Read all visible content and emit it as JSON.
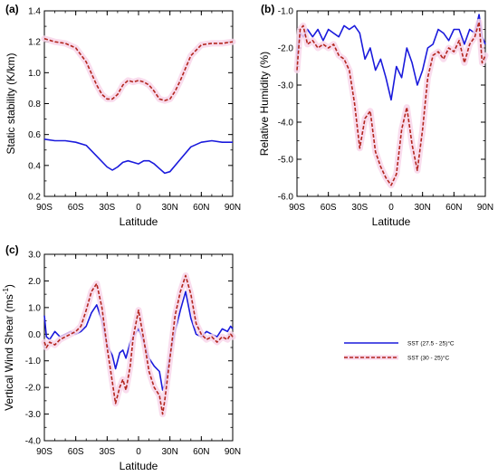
{
  "colors": {
    "blue": "#1a1adc",
    "dashed": "#b3261e",
    "shadow": "#f8d6ea",
    "axis": "#000000"
  },
  "legend": {
    "entries": [
      {
        "label": "SST (27.5 - 25)°C",
        "color": "#1a1adc",
        "style": "solid"
      },
      {
        "label": "SST (30 - 25)°C",
        "color": "#b3261e",
        "style": "dashed"
      }
    ]
  },
  "chart_data": [
    {
      "type": "line",
      "panel_label": "(a)",
      "xlabel": "Latitude",
      "ylabel": "Static stability (K/km)",
      "xlim": [
        -90,
        90
      ],
      "ylim": [
        0.2,
        1.4
      ],
      "xticks": [
        -90,
        -60,
        -30,
        0,
        30,
        60,
        90
      ],
      "xtick_labels": [
        "90S",
        "60S",
        "30S",
        "0",
        "30N",
        "60N",
        "90N"
      ],
      "yticks": [
        0.2,
        0.4,
        0.6,
        0.8,
        1.0,
        1.2,
        1.4
      ],
      "ytick_labels": [
        "0.2",
        "0.4",
        "0.6",
        "0.8",
        "1.0",
        "1.2",
        "1.4"
      ],
      "series": [
        {
          "name": "SST (27.5 - 25)°C",
          "style": "solid",
          "x": [
            -90,
            -80,
            -70,
            -60,
            -50,
            -40,
            -30,
            -25,
            -20,
            -15,
            -10,
            -5,
            0,
            5,
            10,
            15,
            20,
            25,
            30,
            40,
            50,
            60,
            70,
            80,
            90
          ],
          "y": [
            0.57,
            0.56,
            0.56,
            0.55,
            0.53,
            0.46,
            0.39,
            0.37,
            0.39,
            0.42,
            0.43,
            0.42,
            0.41,
            0.43,
            0.43,
            0.41,
            0.38,
            0.35,
            0.36,
            0.44,
            0.52,
            0.55,
            0.56,
            0.55,
            0.55
          ]
        },
        {
          "name": "SST (30 - 25)°C",
          "style": "dashed",
          "x": [
            -90,
            -80,
            -70,
            -60,
            -50,
            -40,
            -35,
            -30,
            -25,
            -20,
            -15,
            -10,
            -5,
            0,
            5,
            10,
            15,
            20,
            25,
            30,
            35,
            40,
            50,
            60,
            70,
            80,
            90
          ],
          "y": [
            1.22,
            1.2,
            1.19,
            1.16,
            1.07,
            0.92,
            0.86,
            0.83,
            0.83,
            0.86,
            0.92,
            0.95,
            0.94,
            0.95,
            0.94,
            0.92,
            0.88,
            0.83,
            0.82,
            0.83,
            0.88,
            0.95,
            1.11,
            1.18,
            1.19,
            1.19,
            1.2
          ]
        }
      ]
    },
    {
      "type": "line",
      "panel_label": "(b)",
      "xlabel": "Latitude",
      "ylabel": "Relative Humidity (%)",
      "xlim": [
        -90,
        90
      ],
      "ylim": [
        -6.0,
        -1.0
      ],
      "xticks": [
        -90,
        -60,
        -30,
        0,
        30,
        60,
        90
      ],
      "xtick_labels": [
        "90S",
        "60S",
        "30S",
        "0",
        "30N",
        "60N",
        "90N"
      ],
      "yticks": [
        -6.0,
        -5.0,
        -4.0,
        -3.0,
        -2.0,
        -1.0
      ],
      "ytick_labels": [
        "-6.0",
        "-5.0",
        "-4.0",
        "-3.0",
        "-2.0",
        "-1.0"
      ],
      "series": [
        {
          "name": "SST (27.5 - 25)°C",
          "style": "solid",
          "x": [
            -90,
            -87,
            -84,
            -80,
            -75,
            -70,
            -65,
            -60,
            -55,
            -50,
            -45,
            -40,
            -35,
            -30,
            -25,
            -20,
            -15,
            -10,
            -5,
            0,
            5,
            10,
            15,
            20,
            25,
            30,
            35,
            40,
            45,
            50,
            55,
            60,
            65,
            70,
            75,
            80,
            84,
            87,
            90
          ],
          "y": [
            -2.2,
            -1.6,
            -1.7,
            -1.5,
            -1.7,
            -1.5,
            -1.8,
            -1.5,
            -1.6,
            -1.7,
            -1.4,
            -1.5,
            -1.4,
            -1.6,
            -2.3,
            -2.0,
            -2.6,
            -2.3,
            -2.8,
            -3.4,
            -2.5,
            -2.8,
            -2.0,
            -2.4,
            -3.0,
            -2.6,
            -2.0,
            -1.9,
            -1.5,
            -1.6,
            -1.8,
            -1.5,
            -1.5,
            -1.9,
            -1.5,
            -1.6,
            -1.1,
            -1.7,
            -1.9
          ]
        },
        {
          "name": "SST (30 - 25)°C",
          "style": "dashed",
          "x": [
            -90,
            -87,
            -84,
            -80,
            -75,
            -70,
            -65,
            -60,
            -55,
            -50,
            -45,
            -40,
            -35,
            -30,
            -25,
            -20,
            -15,
            -10,
            -5,
            0,
            5,
            10,
            15,
            20,
            25,
            30,
            35,
            40,
            45,
            50,
            55,
            60,
            65,
            70,
            75,
            80,
            84,
            87,
            90
          ],
          "y": [
            -2.6,
            -1.5,
            -1.4,
            -1.9,
            -1.8,
            -2.0,
            -1.9,
            -2.0,
            -1.9,
            -2.2,
            -2.3,
            -2.6,
            -3.5,
            -4.7,
            -3.9,
            -3.7,
            -4.8,
            -5.2,
            -5.5,
            -5.7,
            -5.4,
            -4.2,
            -3.6,
            -4.6,
            -5.3,
            -4.2,
            -2.8,
            -2.2,
            -2.1,
            -2.3,
            -2.0,
            -2.1,
            -1.8,
            -2.4,
            -1.9,
            -1.7,
            -1.3,
            -2.4,
            -2.2
          ]
        }
      ]
    },
    {
      "type": "line",
      "panel_label": "(c)",
      "xlabel": "Latitude",
      "ylabel": "Vertical Wind Shear (ms",
      "ylabel_sup": "-1",
      "ylabel_tail": ")",
      "xlim": [
        -90,
        90
      ],
      "ylim": [
        -4.0,
        3.0
      ],
      "xticks": [
        -90,
        -60,
        -30,
        0,
        30,
        60,
        90
      ],
      "xtick_labels": [
        "90S",
        "60S",
        "30S",
        "0",
        "30N",
        "60N",
        "90N"
      ],
      "yticks": [
        -4.0,
        -3.0,
        -2.0,
        -1.0,
        0.0,
        1.0,
        2.0,
        3.0
      ],
      "ytick_labels": [
        "-4.0",
        "-3.0",
        "-2.0",
        "-1.0",
        "0.0",
        "1.0",
        "2.0",
        "3.0"
      ],
      "series": [
        {
          "name": "SST (27.5 - 25)°C",
          "style": "solid",
          "x": [
            -90,
            -88,
            -85,
            -80,
            -75,
            -70,
            -65,
            -60,
            -55,
            -50,
            -45,
            -40,
            -35,
            -30,
            -25,
            -22,
            -18,
            -15,
            -12,
            -8,
            -5,
            0,
            5,
            10,
            15,
            20,
            23,
            25,
            30,
            35,
            40,
            45,
            50,
            55,
            60,
            65,
            70,
            75,
            80,
            85,
            88,
            90
          ],
          "y": [
            0.7,
            -0.1,
            -0.2,
            0.1,
            -0.1,
            0.0,
            0.1,
            0.0,
            0.1,
            0.3,
            0.8,
            1.1,
            0.5,
            -0.4,
            -0.8,
            -1.3,
            -0.7,
            -0.6,
            -0.9,
            -0.3,
            -0.1,
            0.2,
            -0.3,
            -0.9,
            -1.2,
            -1.4,
            -2.1,
            -1.9,
            -0.8,
            0.1,
            0.9,
            1.6,
            0.6,
            0.0,
            -0.1,
            0.1,
            0.0,
            -0.1,
            0.2,
            0.1,
            0.3,
            0.2
          ]
        },
        {
          "name": "SST (30 - 25)°C",
          "style": "dashed",
          "x": [
            -90,
            -88,
            -85,
            -80,
            -75,
            -70,
            -65,
            -60,
            -55,
            -50,
            -45,
            -40,
            -35,
            -30,
            -25,
            -22,
            -18,
            -15,
            -12,
            -8,
            -5,
            0,
            5,
            10,
            15,
            20,
            23,
            25,
            30,
            35,
            40,
            45,
            50,
            55,
            60,
            65,
            70,
            75,
            80,
            85,
            88,
            90
          ],
          "y": [
            -0.3,
            -0.5,
            -0.3,
            -0.4,
            -0.2,
            -0.1,
            0.0,
            0.1,
            0.3,
            0.9,
            1.6,
            1.9,
            1.0,
            -0.5,
            -1.8,
            -2.6,
            -2.0,
            -1.7,
            -2.1,
            -1.2,
            -0.1,
            0.9,
            -0.2,
            -1.4,
            -2.0,
            -2.3,
            -3.0,
            -2.5,
            -0.9,
            0.7,
            1.6,
            2.2,
            1.5,
            0.4,
            0.0,
            -0.2,
            -0.1,
            -0.3,
            -0.1,
            -0.2,
            0.0,
            -0.1
          ]
        }
      ]
    }
  ]
}
